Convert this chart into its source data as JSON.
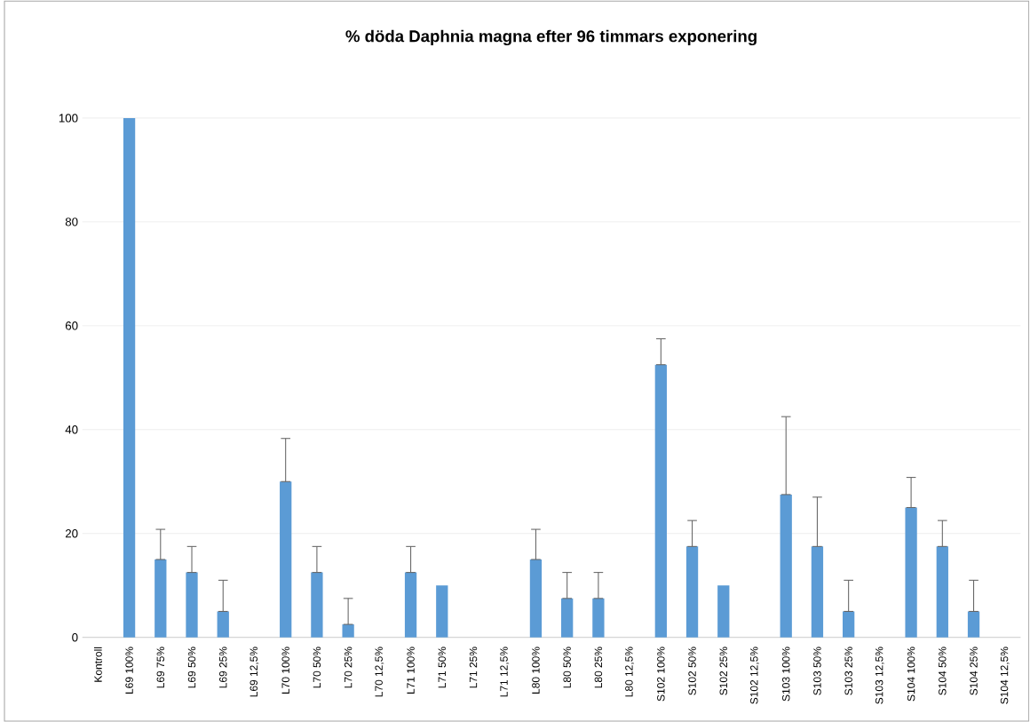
{
  "chart_data": {
    "type": "bar",
    "title": "% döda Daphnia magna efter 96 timmars exponering",
    "categories": [
      "Kontroll",
      "L69 100%",
      "L69 75%",
      "L69 50%",
      "L69 25%",
      "L69 12,5%",
      "L70 100%",
      "L70 50%",
      "L70 25%",
      "L70 12,5%",
      "L71 100%",
      "L71 50%",
      "L71 25%",
      "L71 12,5%",
      "L80 100%",
      "L80 50%",
      "L80 25%",
      "L80 12,5%",
      "S102 100%",
      "S102 50%",
      "S102 25%",
      "S102 12,5%",
      "S103 100%",
      "S103 50%",
      "S103 25%",
      "S103 12,5%",
      "S104 100%",
      "S104 50%",
      "S104 25%",
      "S104 12,5%"
    ],
    "values": [
      0,
      100,
      15,
      12.5,
      5,
      0,
      30,
      12.5,
      2.5,
      0,
      12.5,
      10,
      0,
      0,
      15,
      7.5,
      7.5,
      0,
      52.5,
      17.5,
      10,
      0,
      27.5,
      17.5,
      5,
      0,
      25,
      17.5,
      5,
      0
    ],
    "errors": [
      null,
      null,
      [
        15,
        20.8
      ],
      [
        12.5,
        17.5
      ],
      [
        5,
        11
      ],
      null,
      [
        30,
        38.3
      ],
      [
        12.5,
        17.5
      ],
      [
        2.5,
        7.5
      ],
      null,
      [
        12.5,
        17.5
      ],
      null,
      null,
      null,
      [
        15,
        20.8
      ],
      [
        7.5,
        12.5
      ],
      [
        7.5,
        12.5
      ],
      null,
      [
        52.5,
        57.5
      ],
      [
        17.5,
        22.5
      ],
      null,
      null,
      [
        27.5,
        42.5
      ],
      [
        17.5,
        27
      ],
      [
        5,
        11
      ],
      null,
      [
        25,
        30.8
      ],
      [
        17.5,
        22.5
      ],
      [
        5,
        11
      ],
      null
    ],
    "color": "#5b9bd5",
    "ylim": [
      0,
      100
    ],
    "yticks": [
      0,
      20,
      40,
      60,
      80,
      100
    ],
    "grid": "y"
  }
}
